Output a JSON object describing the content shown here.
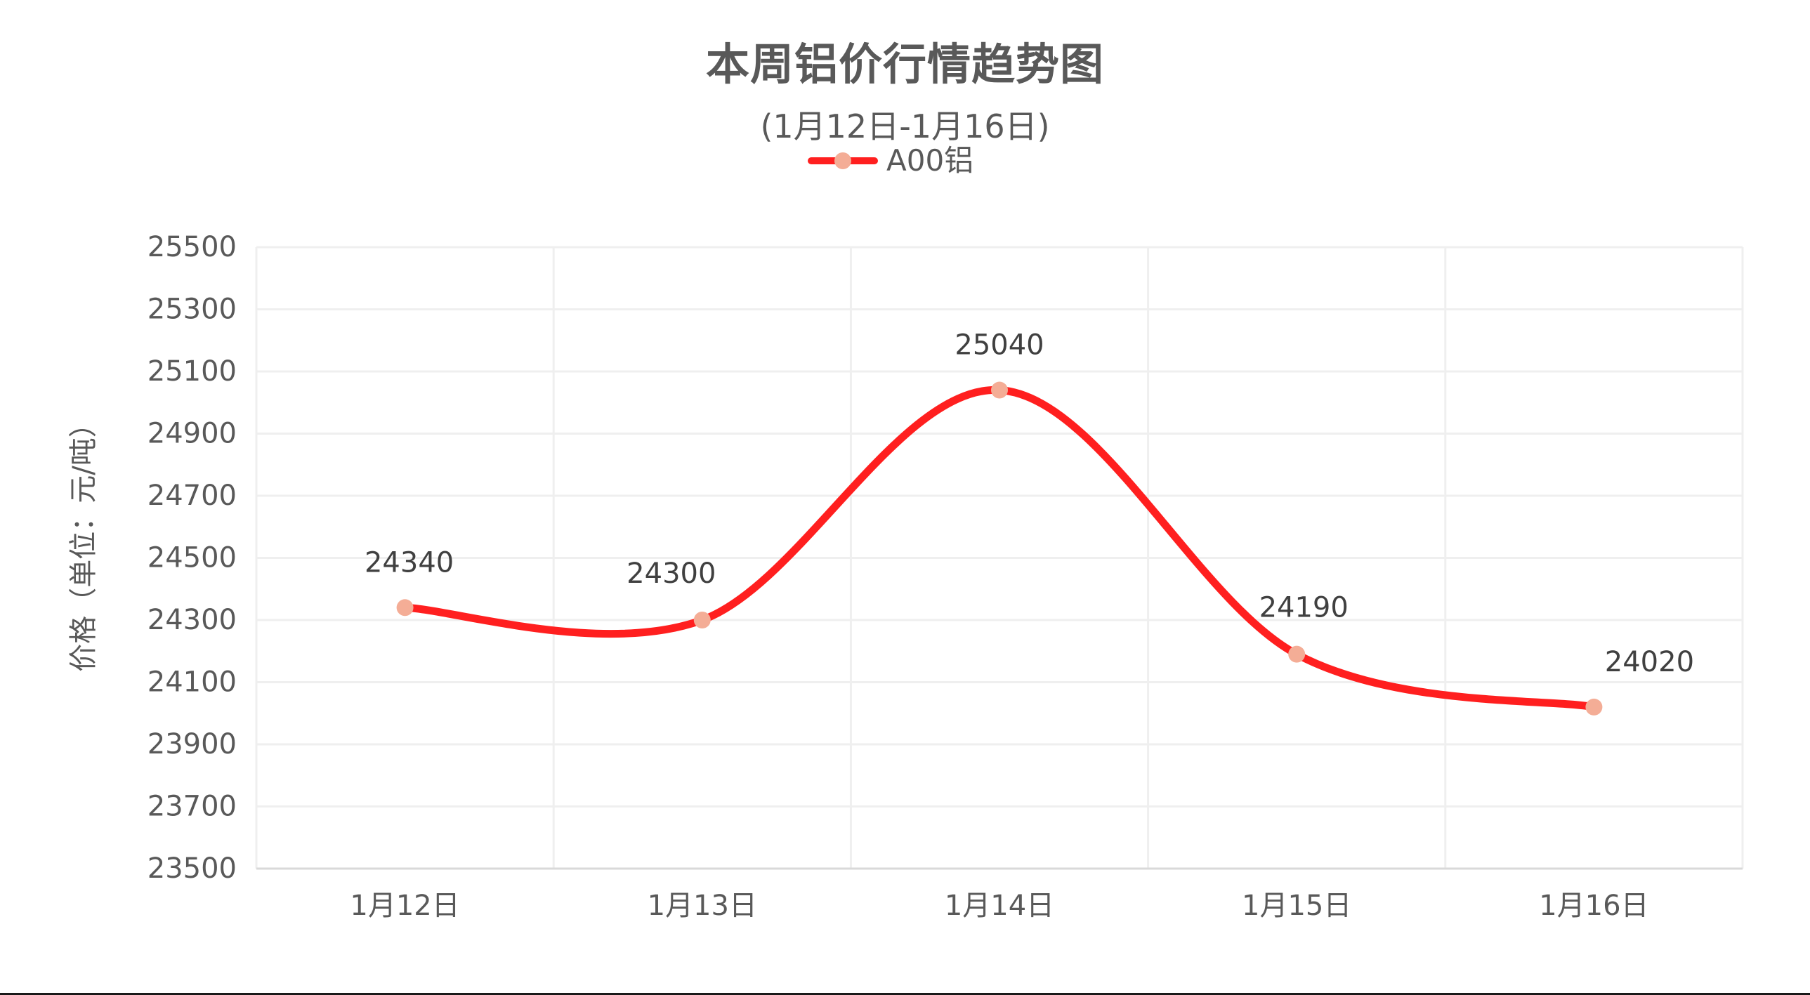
{
  "chart_data": {
    "type": "line",
    "title": "本周铝价行情趋势图",
    "subtitle": "(1月12日-1月16日)",
    "categories": [
      "1月12日",
      "1月13日",
      "1月14日",
      "1月15日",
      "1月16日"
    ],
    "series": [
      {
        "name": "A00铝",
        "values": [
          24340,
          24300,
          25040,
          24190,
          24020
        ],
        "line_color": "#FF1F1F",
        "marker_color": "#F4AD96",
        "smooth": true,
        "data_labels": true
      }
    ],
    "xlabel": "",
    "ylabel": "价格（单位：元/吨）",
    "ylim": [
      23500,
      25500
    ],
    "y_ticks": [
      25500,
      25300,
      25100,
      24900,
      24700,
      24500,
      24300,
      24100,
      23900,
      23700,
      23500
    ],
    "y_tick_step": 200,
    "grid": {
      "horizontal": true,
      "vertical": true,
      "color": "#EFEFEF"
    },
    "legend_position": "top"
  },
  "title": "本周铝价行情趋势图",
  "subtitle": "(1月12日-1月16日)",
  "legend": {
    "label": "A00铝",
    "line_color": "#FF1F1F",
    "marker_color": "#F4AD96"
  },
  "y_axis": {
    "title": "价格（单位：元/吨）"
  }
}
